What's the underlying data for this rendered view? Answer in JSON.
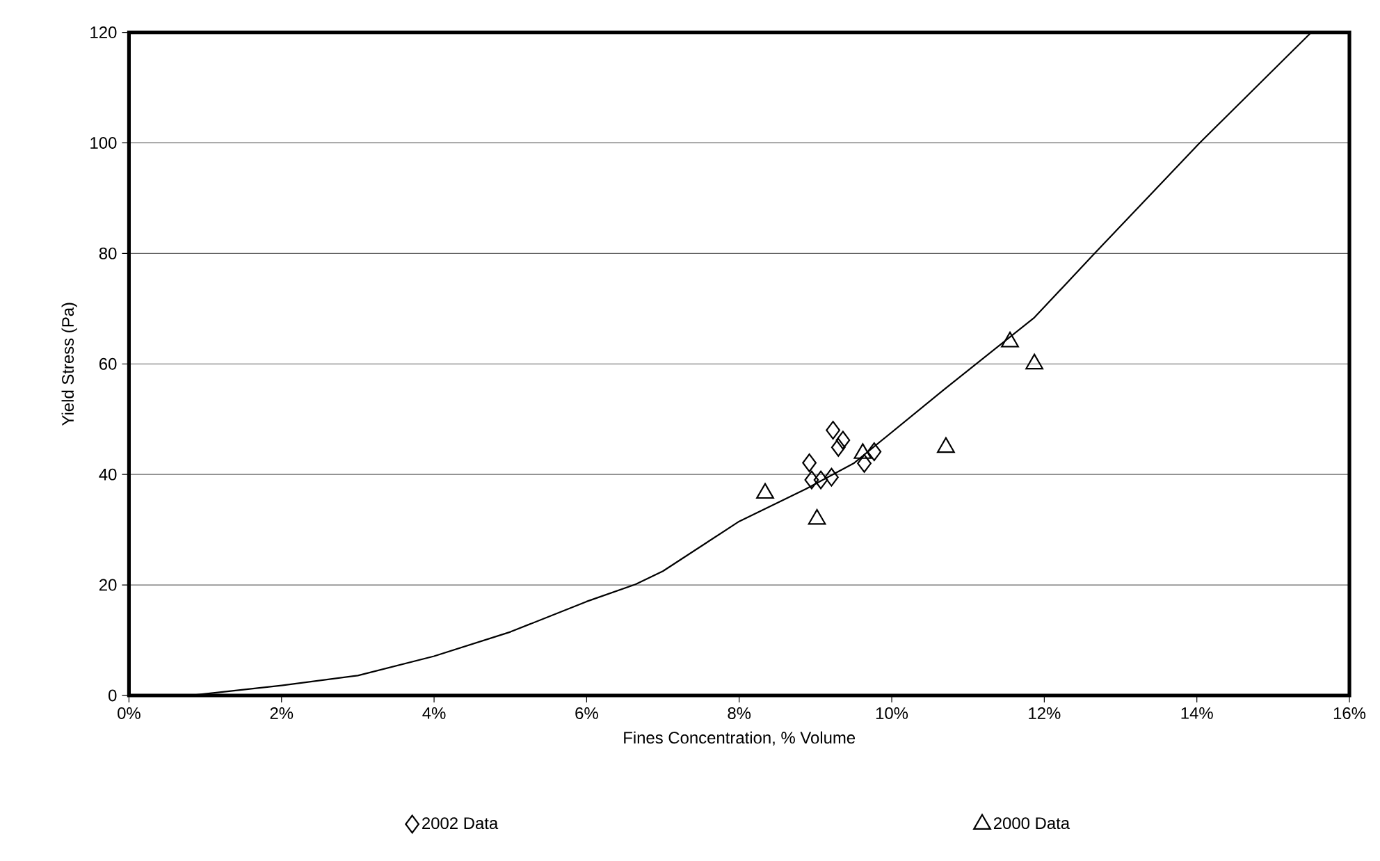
{
  "chart_data": {
    "type": "scatter",
    "xlabel": "Fines Concentration, % Volume",
    "ylabel": "Yield Stress (Pa)",
    "xlim": [
      0,
      16
    ],
    "ylim": [
      0,
      120
    ],
    "xticks": [
      {
        "value": 0,
        "label": "0%"
      },
      {
        "value": 2,
        "label": "2%"
      },
      {
        "value": 4,
        "label": "4%"
      },
      {
        "value": 6,
        "label": "6%"
      },
      {
        "value": 8,
        "label": "8%"
      },
      {
        "value": 10,
        "label": "10%"
      },
      {
        "value": 12,
        "label": "12%"
      },
      {
        "value": 14,
        "label": "14%"
      },
      {
        "value": 16,
        "label": "16%"
      }
    ],
    "yticks": [
      0,
      20,
      40,
      60,
      80,
      100,
      120
    ],
    "grid": "y",
    "legend": "bottom",
    "series": [
      {
        "name": "2002 Data",
        "marker": "diamond",
        "color": "#000000",
        "x": [
          9.23,
          9.36,
          9.3,
          8.92,
          8.95,
          9.07,
          9.21,
          9.64,
          9.77
        ],
        "values": [
          48,
          46.2,
          44.9,
          42.1,
          39,
          39,
          39.5,
          42,
          44.1
        ]
      },
      {
        "name": "2000 Data",
        "marker": "triangle",
        "color": "#000000",
        "x": [
          8.34,
          9.02,
          9.62,
          10.71,
          11.55,
          11.87
        ],
        "values": [
          36.6,
          31.9,
          43.8,
          44.9,
          64,
          60
        ]
      },
      {
        "type": "line",
        "marker": "none",
        "color": "#000000",
        "x": [
          0.8,
          1,
          2,
          3,
          4,
          5,
          6,
          6.64,
          7,
          8,
          8.88,
          9.5,
          10.68,
          11.87,
          12.66,
          14.03,
          15.5
        ],
        "values": [
          0,
          0.3,
          1.8,
          3.6,
          7.1,
          11.5,
          17,
          20.1,
          22.5,
          31.5,
          37.4,
          42,
          55.3,
          68.4,
          80,
          99.9,
          120
        ]
      }
    ]
  }
}
